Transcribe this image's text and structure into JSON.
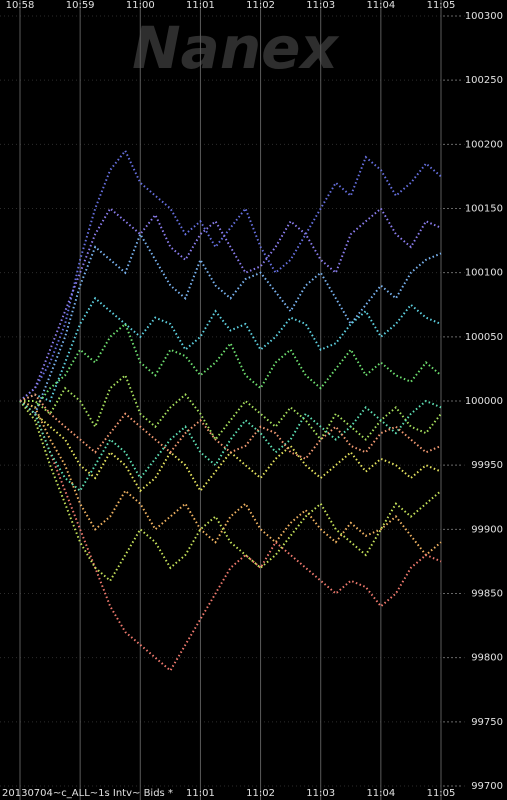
{
  "chart_data": {
    "type": "dot-line",
    "watermark": "Nanex",
    "footer": "20130704~c_ALL~1s Intv~ Bids *",
    "x": [
      "10:58:00",
      "10:58:15",
      "10:58:30",
      "10:58:45",
      "10:59:00",
      "10:59:15",
      "10:59:30",
      "10:59:45",
      "11:00:00",
      "11:00:15",
      "11:00:30",
      "11:00:45",
      "11:01:00",
      "11:01:15",
      "11:01:30",
      "11:01:45",
      "11:02:00",
      "11:02:15",
      "11:02:30",
      "11:02:45",
      "11:03:00",
      "11:03:15",
      "11:03:30",
      "11:03:45",
      "11:04:00",
      "11:04:15",
      "11:04:30",
      "11:04:45",
      "11:05:00"
    ],
    "xlim": [
      "10:58",
      "11:05"
    ],
    "xticks": [
      "10:58",
      "10:59",
      "11:00",
      "11:01",
      "11:02",
      "11:03",
      "11:04",
      "11:05"
    ],
    "ylim": [
      99700,
      100300
    ],
    "yticks": [
      99700,
      99750,
      99800,
      99850,
      99900,
      99950,
      100000,
      100050,
      100100,
      100150,
      100200,
      100250,
      100300
    ],
    "grid": true,
    "series": [
      {
        "color": "#6670e0",
        "values": [
          100000,
          100010,
          100030,
          100060,
          100110,
          100150,
          100180,
          100195,
          100170,
          100160,
          100150,
          100130,
          100140,
          100120,
          100135,
          100150,
          100120,
          100100,
          100110,
          100130,
          100150,
          100170,
          100160,
          100190,
          100180,
          100160,
          100170,
          100185,
          100175
        ]
      },
      {
        "color": "#7ab4f2",
        "values": [
          100000,
          99990,
          100020,
          100050,
          100090,
          100120,
          100110,
          100100,
          100130,
          100110,
          100090,
          100080,
          100110,
          100090,
          100080,
          100095,
          100100,
          100085,
          100070,
          100090,
          100100,
          100080,
          100060,
          100075,
          100090,
          100080,
          100100,
          100110,
          100115
        ]
      },
      {
        "color": "#5ed2e2",
        "values": [
          100000,
          100005,
          100000,
          100030,
          100060,
          100080,
          100070,
          100060,
          100050,
          100065,
          100060,
          100040,
          100050,
          100070,
          100055,
          100060,
          100040,
          100050,
          100065,
          100060,
          100040,
          100045,
          100060,
          100070,
          100050,
          100060,
          100075,
          100065,
          100060
        ]
      },
      {
        "color": "#6ee070",
        "values": [
          100000,
          99995,
          100010,
          100020,
          100040,
          100030,
          100050,
          100060,
          100030,
          100020,
          100040,
          100035,
          100020,
          100030,
          100045,
          100020,
          100010,
          100030,
          100040,
          100020,
          100010,
          100025,
          100040,
          100020,
          100030,
          100020,
          100015,
          100030,
          100020
        ]
      },
      {
        "color": "#a8e25e",
        "values": [
          100000,
          100000,
          99990,
          100010,
          100000,
          99980,
          100010,
          100020,
          99990,
          99980,
          99995,
          100005,
          99990,
          99970,
          99985,
          100000,
          99990,
          99980,
          99995,
          99985,
          99970,
          99990,
          99980,
          99970,
          99985,
          99995,
          99980,
          99975,
          99990
        ]
      },
      {
        "color": "#e6e45e",
        "values": [
          100000,
          99990,
          99980,
          99970,
          99950,
          99940,
          99960,
          99950,
          99930,
          99940,
          99960,
          99950,
          99930,
          99945,
          99960,
          99950,
          99940,
          99955,
          99965,
          99950,
          99940,
          99950,
          99960,
          99945,
          99955,
          99950,
          99940,
          99950,
          99945
        ]
      },
      {
        "color": "#f2b462",
        "values": [
          100000,
          99995,
          99970,
          99950,
          99920,
          99900,
          99910,
          99930,
          99920,
          99900,
          99910,
          99920,
          99900,
          99890,
          99910,
          99920,
          99900,
          99890,
          99905,
          99915,
          99900,
          99890,
          99905,
          99895,
          99900,
          99910,
          99895,
          99880,
          99890
        ]
      },
      {
        "color": "#f07a6e",
        "values": [
          100000,
          99990,
          99960,
          99930,
          99900,
          99870,
          99840,
          99820,
          99810,
          99800,
          99790,
          99810,
          99830,
          99850,
          99870,
          99880,
          99870,
          99890,
          99880,
          99870,
          99860,
          99850,
          99860,
          99855,
          99840,
          99850,
          99870,
          99880,
          99875
        ]
      },
      {
        "color": "#c6e25a",
        "values": [
          100000,
          99985,
          99950,
          99920,
          99890,
          99870,
          99860,
          99880,
          99900,
          99890,
          99870,
          99880,
          99900,
          99910,
          99890,
          99880,
          99870,
          99880,
          99895,
          99910,
          99920,
          99900,
          99890,
          99880,
          99900,
          99920,
          99910,
          99920,
          99930
        ]
      },
      {
        "color": "#8c7ef0",
        "values": [
          100000,
          100010,
          100040,
          100070,
          100100,
          100130,
          100150,
          100140,
          100130,
          100145,
          100120,
          100110,
          100130,
          100140,
          100120,
          100100,
          100105,
          100120,
          100140,
          100130,
          100110,
          100100,
          100130,
          100140,
          100150,
          100130,
          100120,
          100140,
          100135
        ]
      },
      {
        "color": "#5ee0b4",
        "values": [
          100000,
          99990,
          99960,
          99940,
          99930,
          99950,
          99970,
          99960,
          99940,
          99955,
          99970,
          99980,
          99960,
          99950,
          99970,
          99985,
          99975,
          99960,
          99970,
          99990,
          99980,
          99970,
          99980,
          99995,
          99985,
          99975,
          99990,
          100000,
          99995
        ]
      },
      {
        "color": "#f29a72",
        "values": [
          100000,
          100005,
          99990,
          99980,
          99970,
          99960,
          99975,
          99990,
          99980,
          99970,
          99960,
          99975,
          99985,
          99970,
          99960,
          99965,
          99980,
          99975,
          99960,
          99955,
          99970,
          99980,
          99965,
          99960,
          99975,
          99980,
          99970,
          99960,
          99965
        ]
      }
    ]
  }
}
